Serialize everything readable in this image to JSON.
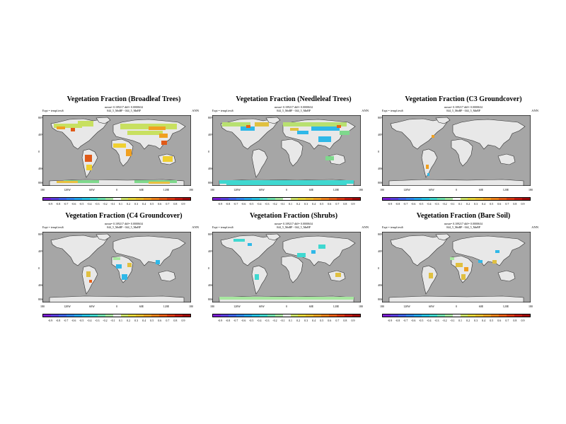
{
  "panels": [
    {
      "title": "Vegetation Fraction (Broadleaf Trees)",
      "stats": "mean= 0.109217 diff= 0.0000634",
      "expt": "Expt = tempf.test6",
      "case": "044_5_MnBP - 044_5_MnBP",
      "season": "ANN",
      "theme": "broadleaf"
    },
    {
      "title": "Vegetation Fraction (Needleleaf Trees)",
      "stats": "mean= 0.109217 diff= 0.0000634",
      "expt": "Expt = tempf.test6",
      "case": "044_5_MnBP - 044_5_MnBP",
      "season": "ANN",
      "theme": "needleleaf"
    },
    {
      "title": "Vegetation Fraction (C3 Groundcover)",
      "stats": "mean= 0.109217 diff= 0.0000634",
      "expt": "Expt = tempf.test6",
      "case": "044_5_MnBP - 044_5_MnBP",
      "season": "ANN",
      "theme": "c3"
    },
    {
      "title": "Vegetation Fraction (C4 Groundcover)",
      "stats": "mean= 0.109217 diff= 0.0000634",
      "expt": "Expt = tempf.test6",
      "case": "044_5_MnBP - 044_5_MnBP",
      "season": "ANN",
      "theme": "c4"
    },
    {
      "title": "Vegetation Fraction (Shrubs)",
      "stats": "mean= 0.109217 diff= 0.0000634",
      "expt": "Expt = tempf.test6",
      "case": "044_5_MnBP - 044_5_MnBP",
      "season": "ANN",
      "theme": "shrubs"
    },
    {
      "title": "Vegetation Fraction (Bare Soil)",
      "stats": "mean= 0.109217 diff= 0.0000634",
      "expt": "Expt = tempf.test6",
      "case": "044_5_MnBP - 044_5_MnBP",
      "season": "ANN",
      "theme": "bare"
    }
  ],
  "latitude_labels": [
    "80N",
    "40N",
    "0",
    "40S",
    "80S"
  ],
  "longitude_labels": [
    "180",
    "120W",
    "60W",
    "0",
    "60E",
    "120E",
    "180"
  ],
  "colorbar": {
    "labels": [
      "-0.9",
      "-0.8",
      "-0.7",
      "-0.6",
      "-0.5",
      "-0.4",
      "-0.3",
      "-0.2",
      "-0.1",
      "0.1",
      "0.2",
      "0.3",
      "0.4",
      "0.5",
      "0.6",
      "0.7",
      "0.8",
      "0.9"
    ],
    "colors": [
      "#7b1fd6",
      "#5a3fe0",
      "#3f63ee",
      "#2f86f2",
      "#23a7ef",
      "#27c4e6",
      "#3fd8d0",
      "#6fe2b0",
      "#a8e8a0",
      "#ffffff",
      "#cde46a",
      "#e6d83a",
      "#f0c12e",
      "#f4a323",
      "#ef821b",
      "#e65d16",
      "#d93a12",
      "#c21a10",
      "#a00b0b"
    ]
  },
  "colors": {
    "ocean": "#a6a6a6",
    "land": "#e8e8e8",
    "coast": "#303030"
  }
}
